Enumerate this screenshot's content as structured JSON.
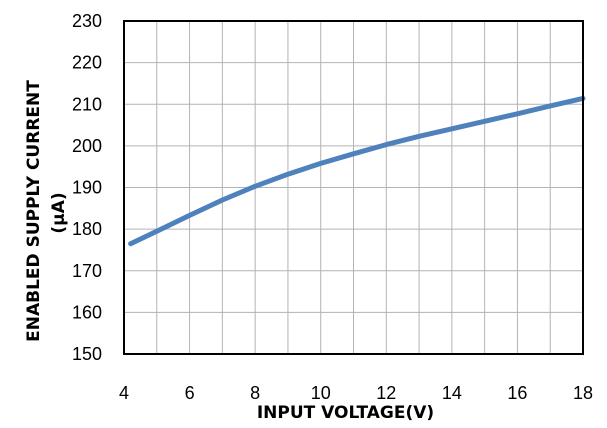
{
  "chart_data": {
    "type": "line",
    "title": "",
    "xlabel": "INPUT VOLTAGE(V)",
    "ylabel_line1": "ENABLED SUPPLY CURRENT",
    "ylabel_line2": "(µA)",
    "xlim": [
      4,
      18
    ],
    "ylim": [
      150,
      230
    ],
    "x_ticks": [
      4,
      6,
      8,
      10,
      12,
      14,
      16,
      18
    ],
    "y_ticks": [
      150,
      160,
      170,
      180,
      190,
      200,
      210,
      220,
      230
    ],
    "x_minor_step": 1,
    "grid": true,
    "line_color": "#4f81bd",
    "series": [
      {
        "x": [
          4.2,
          5,
          6,
          7,
          8,
          9,
          10,
          11,
          12,
          13,
          14,
          15,
          16,
          17,
          18
        ],
        "values": [
          176.5,
          179.5,
          183.3,
          187,
          190.3,
          193.2,
          195.8,
          198.1,
          200.3,
          202.3,
          204.1,
          205.9,
          207.7,
          209.6,
          211.4
        ]
      }
    ]
  }
}
